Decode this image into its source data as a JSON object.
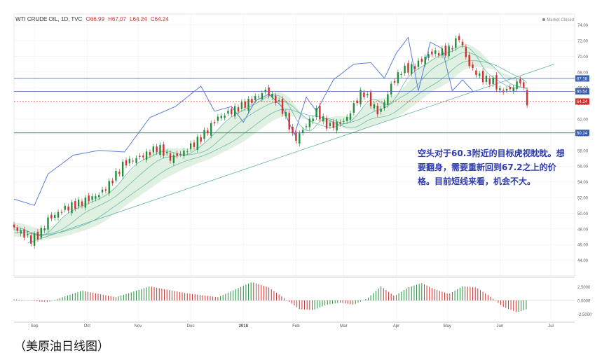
{
  "header": {
    "symbol": "WTI CRUDE OIL, 1D, TVC",
    "open": "O66.99",
    "high": "H67.07",
    "low": "L64.24",
    "close": "C64.24",
    "market_status": "Market Closed"
  },
  "note_text": "空头对于60.3附近的目标虎视眈眈。想要翻身，需要重新回到67.2之上的价格。目前短线来看，机会不大。",
  "caption": "（美原油日线图）",
  "colors": {
    "up": "#1f8f3a",
    "down": "#d0312d",
    "blue_line": "#5b7fd6",
    "hline": "#3a5fae",
    "cloud_up": "#cde8cd",
    "cloud_down": "#f6cccc",
    "ma": "#5fb3a8"
  },
  "chart_data": {
    "type": "line",
    "title": "WTI CRUDE OIL, 1D, TVC",
    "y_axis": {
      "ticks": [
        44.0,
        46.0,
        48.0,
        50.0,
        52.0,
        54.0,
        56.0,
        58.0,
        60.0,
        62.0,
        64.0,
        66.0,
        68.0,
        70.0,
        72.0,
        74.0
      ],
      "tick_labels": [
        "44.00",
        "46.00",
        "48.00",
        "50.00",
        "52.00",
        "54.00",
        "56.00",
        "58.00",
        "60.00",
        "62.00",
        "64.00",
        "66.00",
        "68.00",
        "70.00",
        "72.00",
        "74.00"
      ],
      "ylim": [
        42,
        74.5
      ]
    },
    "x_axis": {
      "labels": [
        "Sep",
        "Oct",
        "Nov",
        "Dec",
        "2018",
        "Feb",
        "Mar",
        "Apr",
        "May",
        "Jun",
        "Jul"
      ],
      "label_days": [
        12,
        43,
        73,
        104,
        135,
        166,
        194,
        225,
        255,
        286,
        316
      ],
      "xlim": [
        0,
        330
      ]
    },
    "horizontal_levels": [
      {
        "value": 67.18,
        "label": "67.18",
        "color": "#3a5fae"
      },
      {
        "value": 65.54,
        "label": "65.54",
        "color": "#3a5fae"
      },
      {
        "value": 64.24,
        "label": "64.24",
        "color": "#d0312d",
        "dashed": true
      },
      {
        "value": 60.24,
        "label": "60.24",
        "color": "#3a5fae"
      }
    ],
    "price_close_path": {
      "days": [
        0,
        10,
        15,
        20,
        30,
        40,
        50,
        55,
        65,
        75,
        85,
        92,
        100,
        110,
        120,
        130,
        140,
        148,
        155,
        160,
        165,
        172,
        178,
        185,
        195,
        205,
        215,
        222,
        228,
        235,
        245,
        255,
        262,
        268,
        275,
        282,
        286,
        292,
        298,
        302
      ],
      "values": [
        48.2,
        46.6,
        47.3,
        49.2,
        50.6,
        51.4,
        52.4,
        53.4,
        56.4,
        57.2,
        58.4,
        57.0,
        57.8,
        59.6,
        62.2,
        63.2,
        64.4,
        65.6,
        64.3,
        62.4,
        59.2,
        61.2,
        63.0,
        61.0,
        61.8,
        65.6,
        62.6,
        66.3,
        68.2,
        68.6,
        70.4,
        70.6,
        72.4,
        68.8,
        67.2,
        66.8,
        65.6,
        65.8,
        66.9,
        64.24
      ]
    },
    "blue_indicator": {
      "days": [
        0,
        12,
        20,
        35,
        50,
        65,
        80,
        95,
        110,
        118,
        128,
        135,
        142,
        150,
        158,
        165,
        172,
        178,
        188,
        200,
        210,
        218,
        225,
        232,
        238,
        245,
        252,
        258,
        264,
        270
      ],
      "values": [
        51.8,
        51.0,
        55.0,
        57.4,
        58.0,
        57.8,
        62.2,
        63.6,
        66.2,
        63.0,
        63.6,
        61.6,
        64.3,
        65.2,
        63.5,
        60.0,
        64.8,
        63.0,
        67.0,
        69.0,
        69.2,
        67.2,
        70.4,
        72.4,
        65.6,
        71.8,
        71.0,
        65.6,
        67.0,
        65.6
      ]
    },
    "histogram": {
      "ticks": [
        2.5,
        0.0,
        -2.5
      ],
      "tick_labels": [
        "2.5000",
        "0.0000",
        "-2.5000"
      ],
      "ylim": [
        -3.5,
        4.0
      ],
      "days": [
        0,
        20,
        40,
        60,
        80,
        100,
        120,
        140,
        150,
        160,
        168,
        176,
        184,
        192,
        200,
        208,
        216,
        224,
        232,
        240,
        248,
        256,
        264,
        272,
        280,
        288,
        296,
        302
      ],
      "values": [
        0.2,
        -0.3,
        1.8,
        0.6,
        2.6,
        1.4,
        0.6,
        3.4,
        2.4,
        0.2,
        -1.6,
        -1.8,
        -0.8,
        -0.4,
        -0.8,
        0.4,
        2.6,
        0.8,
        2.4,
        3.2,
        2.0,
        1.2,
        2.6,
        2.4,
        0.8,
        -1.2,
        -2.2,
        -1.6
      ]
    }
  }
}
